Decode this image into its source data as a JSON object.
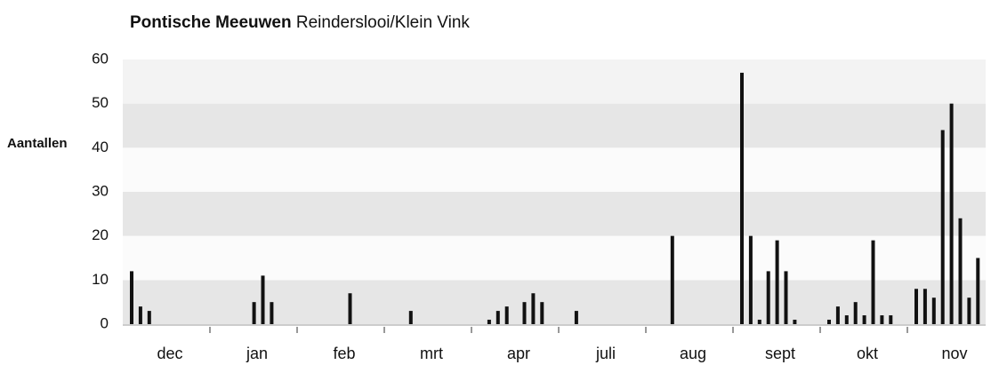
{
  "chart_data": {
    "type": "bar",
    "title": "Pontische Meeuwen",
    "subtitle": "Reinderslooi/Klein Vink",
    "y_label": "Aantallen",
    "categories": [
      "dec",
      "jan",
      "feb",
      "mrt",
      "apr",
      "juli",
      "aug",
      "sept",
      "okt",
      "nov"
    ],
    "values": [
      [
        12,
        4,
        3,
        0,
        0,
        0,
        0,
        0,
        0,
        0
      ],
      [
        0,
        0,
        0,
        0,
        5,
        11,
        5,
        0,
        0,
        0
      ],
      [
        0,
        0,
        0,
        0,
        0,
        7,
        0,
        0,
        0,
        0
      ],
      [
        0,
        0,
        3,
        0,
        0,
        0,
        0,
        0,
        0,
        0
      ],
      [
        0,
        1,
        3,
        4,
        0,
        5,
        7,
        5,
        0,
        0
      ],
      [
        0,
        3,
        0,
        0,
        0,
        0,
        0,
        0,
        0,
        0
      ],
      [
        0,
        0,
        20,
        0,
        0,
        0,
        0,
        0,
        0,
        0
      ],
      [
        57,
        20,
        1,
        12,
        19,
        12,
        1,
        0,
        0,
        0
      ],
      [
        1,
        4,
        2,
        5,
        2,
        19,
        2,
        2,
        0,
        0
      ],
      [
        8,
        8,
        6,
        44,
        50,
        24,
        6,
        15,
        0,
        0
      ]
    ],
    "color": "#111111",
    "ylim": [
      0,
      60
    ],
    "yticks": [
      0,
      10,
      20,
      30,
      40,
      50,
      60
    ],
    "bands": true
  }
}
